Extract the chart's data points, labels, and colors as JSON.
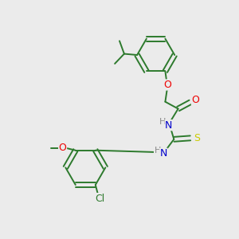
{
  "background_color": "#ebebeb",
  "bond_color": "#2d7a2d",
  "atom_colors": {
    "O": "#ee0000",
    "N": "#0000cc",
    "S": "#cccc00",
    "Cl": "#2d7a2d",
    "H": "#888888"
  },
  "figsize": [
    3.0,
    3.0
  ],
  "dpi": 100
}
